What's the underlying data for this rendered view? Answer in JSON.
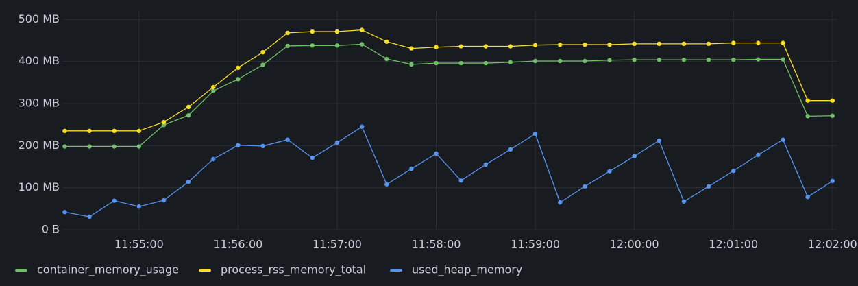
{
  "chart_data": {
    "type": "line",
    "x": [
      "11:54:15",
      "11:54:30",
      "11:54:45",
      "11:55:00",
      "11:55:15",
      "11:55:30",
      "11:55:45",
      "11:56:00",
      "11:56:15",
      "11:56:30",
      "11:56:45",
      "11:57:00",
      "11:57:15",
      "11:57:30",
      "11:57:45",
      "11:58:00",
      "11:58:15",
      "11:58:30",
      "11:58:45",
      "11:59:00",
      "11:59:15",
      "11:59:30",
      "11:59:45",
      "12:00:00",
      "12:00:15",
      "12:00:30",
      "12:00:45",
      "12:01:00",
      "12:01:15",
      "12:01:30",
      "12:01:45",
      "12:02:00"
    ],
    "xlim": [
      "11:54:14",
      "12:02:03"
    ],
    "xticks": [
      "11:55:00",
      "11:56:00",
      "11:57:00",
      "11:58:00",
      "11:59:00",
      "12:00:00",
      "12:01:00",
      "12:02:00"
    ],
    "ylim": [
      0,
      520
    ],
    "yticks": [
      {
        "value": 0,
        "label": "0 B"
      },
      {
        "value": 100,
        "label": "100 MB"
      },
      {
        "value": 200,
        "label": "200 MB"
      },
      {
        "value": 300,
        "label": "300 MB"
      },
      {
        "value": 400,
        "label": "400 MB"
      },
      {
        "value": 500,
        "label": "500 MB"
      }
    ],
    "grid": true,
    "legend": "bottom",
    "series": [
      {
        "name": "container_memory_usage",
        "color": "#73bf69",
        "values": [
          198,
          198,
          198,
          198,
          249,
          272,
          330,
          358,
          392,
          437,
          438,
          438,
          441,
          406,
          393,
          396,
          396,
          396,
          398,
          401,
          401,
          401,
          403,
          404,
          404,
          404,
          404,
          404,
          405,
          405,
          270,
          271
        ]
      },
      {
        "name": "process_rss_memory_total",
        "color": "#fade2a",
        "values": [
          235,
          235,
          235,
          235,
          256,
          292,
          339,
          385,
          422,
          468,
          471,
          471,
          475,
          447,
          431,
          434,
          436,
          436,
          436,
          439,
          440,
          440,
          440,
          442,
          442,
          442,
          442,
          444,
          444,
          444,
          307,
          307
        ]
      },
      {
        "name": "used_heap_memory",
        "color": "#5794f2",
        "values": [
          42,
          31,
          69,
          55,
          70,
          114,
          168,
          201,
          199,
          214,
          171,
          207,
          245,
          108,
          145,
          181,
          117,
          155,
          191,
          228,
          65,
          103,
          139,
          175,
          212,
          67,
          103,
          140,
          178,
          214,
          78,
          116
        ]
      }
    ]
  }
}
